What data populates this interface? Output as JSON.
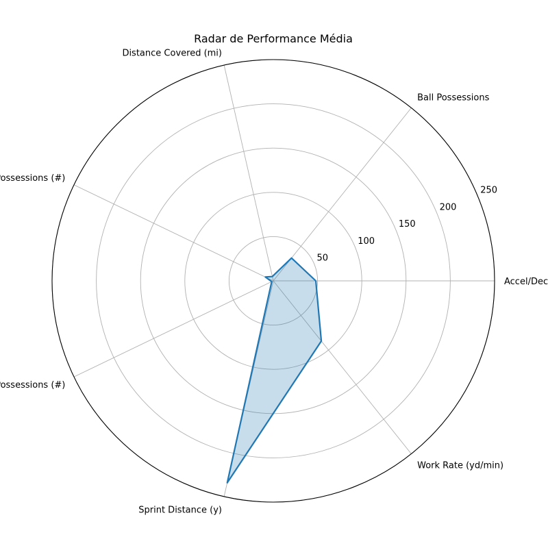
{
  "chart_data": {
    "type": "radar",
    "title": "Radar de Performance Média",
    "categories": [
      "Accel/Decl (#)",
      "Ball Possessions",
      "Distance Covered (mi)",
      "Long Possessions (#)",
      "Short Possessions (#)",
      "Sprint Distance (y)",
      "Work Rate (yd/min)"
    ],
    "series": [
      {
        "values": [
          48,
          33,
          5,
          10,
          2,
          234,
          87
        ]
      }
    ],
    "rlim": [
      0,
      250
    ],
    "rticks": [
      50,
      100,
      150,
      200,
      250
    ],
    "rtick_labels": [
      "50",
      "100",
      "150",
      "200",
      "250"
    ],
    "grid": true,
    "colors": {
      "line": "#1f77b4",
      "fill": "#1f77b4",
      "grid": "#b0b0b0"
    }
  }
}
